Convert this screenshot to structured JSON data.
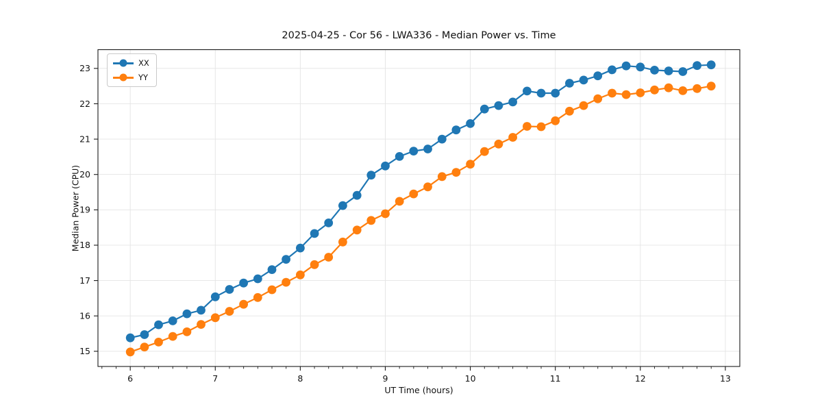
{
  "figure": {
    "title": "2025-04-25 - Cor 56 - LWA336 - Median Power vs. Time",
    "xlabel": "UT Time (hours)",
    "ylabel": "Median Power (CPU)"
  },
  "legend": {
    "items": [
      {
        "label": "XX",
        "color": "#1f77b4"
      },
      {
        "label": "YY",
        "color": "#ff7f0e"
      }
    ]
  },
  "chart_data": {
    "type": "line",
    "title": "2025-04-25 - Cor 56 - LWA336 - Median Power vs. Time",
    "xlabel": "UT Time (hours)",
    "ylabel": "Median Power (CPU)",
    "grid": true,
    "legend_position": "upper-left",
    "xlim": [
      5.62,
      13.17
    ],
    "ylim": [
      14.57,
      23.53
    ],
    "x_major_ticks": [
      6,
      7,
      8,
      9,
      10,
      11,
      12,
      13
    ],
    "x_minor_interval": 0.1667,
    "y_major_ticks": [
      15,
      16,
      17,
      18,
      19,
      20,
      21,
      22,
      23
    ],
    "x": [
      6.0,
      6.167,
      6.333,
      6.5,
      6.667,
      6.833,
      7.0,
      7.167,
      7.333,
      7.5,
      7.667,
      7.833,
      8.0,
      8.167,
      8.333,
      8.5,
      8.667,
      8.833,
      9.0,
      9.167,
      9.333,
      9.5,
      9.667,
      9.833,
      10.0,
      10.167,
      10.333,
      10.5,
      10.667,
      10.833,
      11.0,
      11.167,
      11.333,
      11.5,
      11.667,
      11.833,
      12.0,
      12.167,
      12.333,
      12.5,
      12.667,
      12.833
    ],
    "series": [
      {
        "name": "XX",
        "color": "#1f77b4",
        "values": [
          15.38,
          15.47,
          15.75,
          15.86,
          16.06,
          16.16,
          16.54,
          16.75,
          16.93,
          17.05,
          17.31,
          17.6,
          17.92,
          18.33,
          18.63,
          19.12,
          19.41,
          19.98,
          20.24,
          20.51,
          20.66,
          20.72,
          21.0,
          21.26,
          21.44,
          21.85,
          21.95,
          22.05,
          22.36,
          22.3,
          22.3,
          22.58,
          22.67,
          22.79,
          22.96,
          23.07,
          23.04,
          22.95,
          22.93,
          22.91,
          23.08,
          23.1
        ]
      },
      {
        "name": "YY",
        "color": "#ff7f0e",
        "values": [
          14.98,
          15.12,
          15.26,
          15.42,
          15.55,
          15.76,
          15.95,
          16.13,
          16.33,
          16.52,
          16.74,
          16.95,
          17.16,
          17.45,
          17.66,
          18.09,
          18.43,
          18.7,
          18.89,
          19.24,
          19.45,
          19.65,
          19.94,
          20.06,
          20.29,
          20.65,
          20.86,
          21.05,
          21.36,
          21.35,
          21.52,
          21.79,
          21.95,
          22.14,
          22.3,
          22.26,
          22.31,
          22.39,
          22.45,
          22.37,
          22.43,
          22.5
        ]
      }
    ],
    "colors": {
      "grid": "#e4e4e4",
      "spine": "#1a1a1a",
      "tick_label": "#111111"
    }
  }
}
